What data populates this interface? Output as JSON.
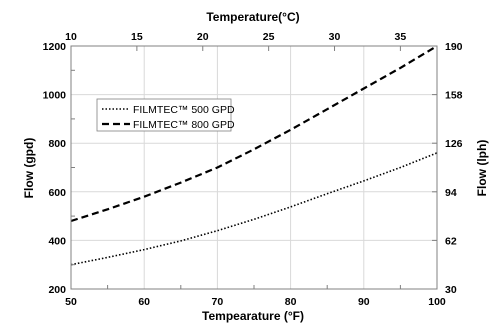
{
  "chart_data": {
    "type": "line",
    "top_axis_label": "Temperature(°C)",
    "xlabel": "Tempearature (°F)",
    "ylabel_left": "Flow (gpd)",
    "ylabel_right": "Flow (lph)",
    "xlim": [
      50,
      100
    ],
    "ylim": [
      200,
      1200
    ],
    "x_ticks": [
      "50",
      "60",
      "70",
      "80",
      "90",
      "100"
    ],
    "y_ticks": [
      "200",
      "400",
      "600",
      "800",
      "1000",
      "1200"
    ],
    "top_ticks": [
      {
        "label": "10",
        "celsius": 10
      },
      {
        "label": "15",
        "celsius": 15
      },
      {
        "label": "20",
        "celsius": 20
      },
      {
        "label": "25",
        "celsius": 25
      },
      {
        "label": "30",
        "celsius": 30
      },
      {
        "label": "35",
        "celsius": 35
      }
    ],
    "right_ticks": [
      {
        "label": "30",
        "gpd": 200
      },
      {
        "label": "62",
        "gpd": 400
      },
      {
        "label": "94",
        "gpd": 600
      },
      {
        "label": "126",
        "gpd": 800
      },
      {
        "label": "158",
        "gpd": 1000
      },
      {
        "label": "190",
        "gpd": 1200
      }
    ],
    "grid": true,
    "legend_position": "upper-left",
    "series": [
      {
        "name": "FILMTEC™ 500 GPD",
        "style": "dotted",
        "x": [
          50,
          55,
          60,
          65,
          70,
          75,
          80,
          85,
          90,
          95,
          100
        ],
        "y": [
          300,
          330,
          362,
          398,
          440,
          487,
          538,
          592,
          645,
          700,
          760
        ]
      },
      {
        "name": "FILMTEC™ 800 GPD",
        "style": "dashed",
        "x": [
          50,
          55,
          60,
          65,
          70,
          75,
          80,
          85,
          90,
          95,
          100
        ],
        "y": [
          480,
          528,
          580,
          638,
          700,
          775,
          855,
          940,
          1025,
          1110,
          1200
        ]
      }
    ]
  }
}
